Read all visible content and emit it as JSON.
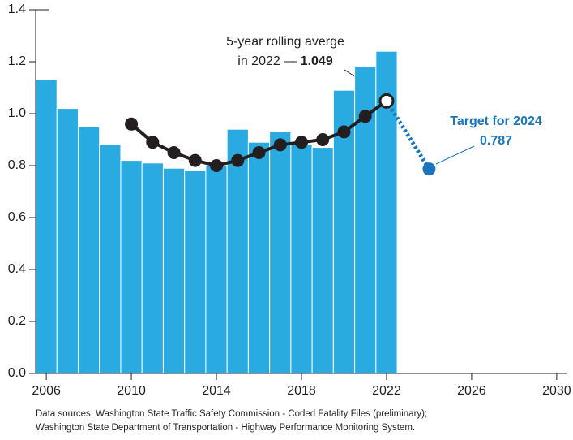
{
  "chart_data": {
    "type": "bar",
    "bars": {
      "x": [
        2006,
        2007,
        2008,
        2009,
        2010,
        2011,
        2012,
        2013,
        2014,
        2015,
        2016,
        2017,
        2018,
        2019,
        2020,
        2021,
        2022
      ],
      "values": [
        1.13,
        1.02,
        0.95,
        0.88,
        0.82,
        0.81,
        0.79,
        0.78,
        0.8,
        0.94,
        0.89,
        0.93,
        0.88,
        0.87,
        1.09,
        1.18,
        1.24
      ],
      "color": "#29abe2"
    },
    "rolling": {
      "x": [
        2010,
        2011,
        2012,
        2013,
        2014,
        2015,
        2016,
        2017,
        2018,
        2019,
        2020,
        2021,
        2022
      ],
      "values": [
        0.96,
        0.89,
        0.85,
        0.82,
        0.8,
        0.82,
        0.85,
        0.88,
        0.89,
        0.9,
        0.93,
        0.99,
        1.049
      ],
      "color": "#231f20"
    },
    "target": {
      "x": 2024,
      "value": 0.787,
      "color": "#1a75bc"
    },
    "annotations": [
      "5-year rolling averge",
      "in 2022 — ",
      "Target for 2024"
    ],
    "xlim": [
      2005.5,
      2030.5
    ],
    "xticks": [
      2006,
      2010,
      2014,
      2018,
      2022,
      2026,
      2030
    ],
    "ylim": [
      0,
      1.4
    ],
    "yticks": [
      {
        "value": 0,
        "label": "0.0"
      },
      0.2,
      0.4,
      0.6,
      0.8,
      {
        "value": 1,
        "label": "1.0"
      },
      1.2,
      1.4
    ],
    "source": [
      "Data sources: Washington State Traffic Safety Commission - Coded Fatality Files (preliminary);",
      "Washington State Department of Transportation - Highway Performance Monitoring System."
    ]
  }
}
